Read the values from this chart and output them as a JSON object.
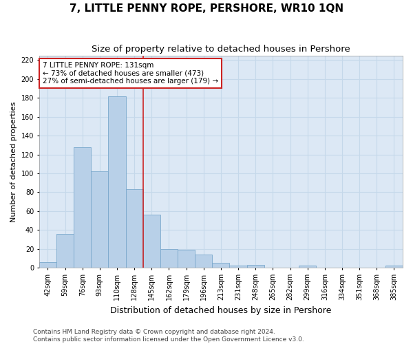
{
  "title": "7, LITTLE PENNY ROPE, PERSHORE, WR10 1QN",
  "subtitle": "Size of property relative to detached houses in Pershore",
  "xlabel": "Distribution of detached houses by size in Pershore",
  "ylabel": "Number of detached properties",
  "categories": [
    "42sqm",
    "59sqm",
    "76sqm",
    "93sqm",
    "110sqm",
    "128sqm",
    "145sqm",
    "162sqm",
    "179sqm",
    "196sqm",
    "213sqm",
    "231sqm",
    "248sqm",
    "265sqm",
    "282sqm",
    "299sqm",
    "316sqm",
    "334sqm",
    "351sqm",
    "368sqm",
    "385sqm"
  ],
  "values": [
    6,
    36,
    128,
    102,
    182,
    83,
    56,
    20,
    19,
    14,
    5,
    2,
    3,
    0,
    0,
    2,
    0,
    0,
    0,
    0,
    2
  ],
  "bar_color": "#b8d0e8",
  "bar_edge_color": "#7aa8cc",
  "vline_color": "#cc2222",
  "vline_x": 5.5,
  "annotation_line1": "7 LITTLE PENNY ROPE: 131sqm",
  "annotation_line2": "← 73% of detached houses are smaller (473)",
  "annotation_line3": "27% of semi-detached houses are larger (179) →",
  "annotation_box_color": "#ffffff",
  "annotation_box_edge_color": "#cc2222",
  "ylim": [
    0,
    225
  ],
  "yticks": [
    0,
    20,
    40,
    60,
    80,
    100,
    120,
    140,
    160,
    180,
    200,
    220
  ],
  "grid_color": "#c5d8ea",
  "bg_color": "#dce8f5",
  "footer_line1": "Contains HM Land Registry data © Crown copyright and database right 2024.",
  "footer_line2": "Contains public sector information licensed under the Open Government Licence v3.0.",
  "title_fontsize": 11,
  "subtitle_fontsize": 9.5,
  "xlabel_fontsize": 9,
  "ylabel_fontsize": 8,
  "tick_fontsize": 7,
  "annotation_fontsize": 7.5,
  "footer_fontsize": 6.5
}
